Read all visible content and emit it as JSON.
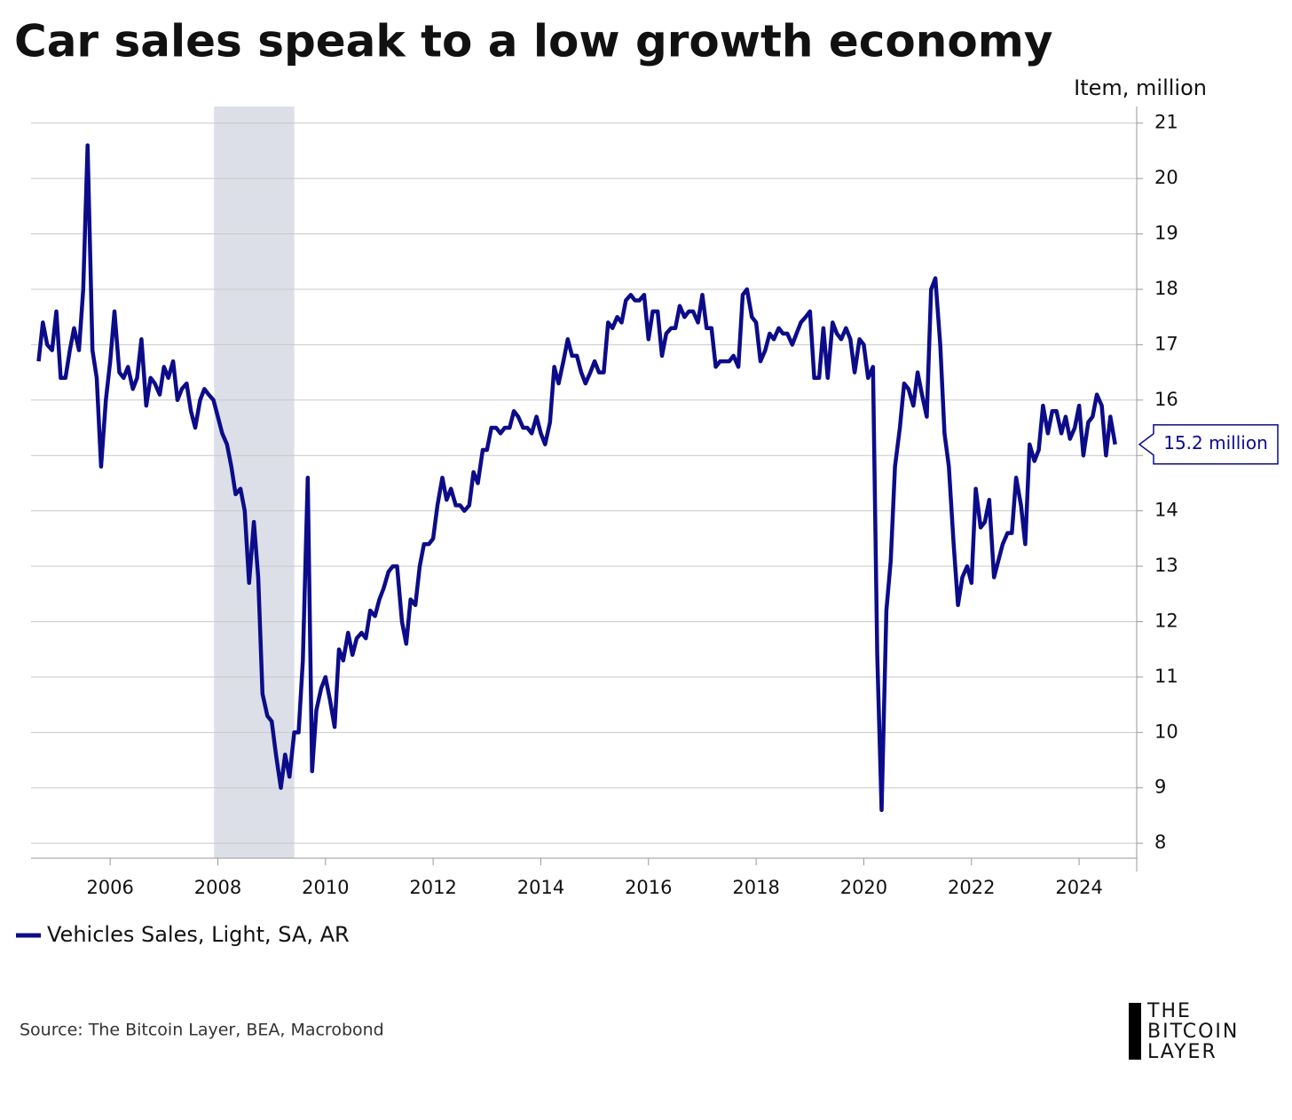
{
  "chart_data": {
    "type": "line",
    "title": "Car sales speak to a low growth economy",
    "y_axis_label": "Item, million",
    "source": "Source: The Bitcoin Layer, BEA, Macrobond",
    "logo": [
      "THE",
      "BITCOIN",
      "LAYER"
    ],
    "annotation": "15.2 million",
    "recession": [
      2007.93,
      2009.42
    ],
    "xlim": [
      2004.53,
      2025.07
    ],
    "xticks": [
      2006,
      2008,
      2010,
      2012,
      2014,
      2016,
      2018,
      2020,
      2022,
      2024
    ],
    "ylim": [
      7.73,
      21.3
    ],
    "yticks": [
      8,
      9,
      10,
      11,
      12,
      13,
      14,
      15,
      16,
      17,
      18,
      19,
      20,
      21
    ],
    "grid": true,
    "x": [
      2004.67,
      2004.75,
      2004.83,
      2004.92,
      2005.0,
      2005.08,
      2005.17,
      2005.25,
      2005.33,
      2005.42,
      2005.5,
      2005.58,
      2005.67,
      2005.75,
      2005.83,
      2005.92,
      2006.0,
      2006.08,
      2006.17,
      2006.25,
      2006.33,
      2006.42,
      2006.5,
      2006.58,
      2006.67,
      2006.75,
      2006.83,
      2006.92,
      2007.0,
      2007.08,
      2007.17,
      2007.25,
      2007.33,
      2007.42,
      2007.5,
      2007.58,
      2007.67,
      2007.75,
      2007.83,
      2007.92,
      2008.0,
      2008.08,
      2008.17,
      2008.25,
      2008.33,
      2008.42,
      2008.5,
      2008.58,
      2008.67,
      2008.75,
      2008.83,
      2008.92,
      2009.0,
      2009.08,
      2009.17,
      2009.25,
      2009.33,
      2009.42,
      2009.5,
      2009.58,
      2009.67,
      2009.75,
      2009.83,
      2009.92,
      2010.0,
      2010.08,
      2010.17,
      2010.25,
      2010.33,
      2010.42,
      2010.5,
      2010.58,
      2010.67,
      2010.75,
      2010.83,
      2010.92,
      2011.0,
      2011.08,
      2011.17,
      2011.25,
      2011.33,
      2011.42,
      2011.5,
      2011.58,
      2011.67,
      2011.75,
      2011.83,
      2011.92,
      2012.0,
      2012.08,
      2012.17,
      2012.25,
      2012.33,
      2012.42,
      2012.5,
      2012.58,
      2012.67,
      2012.75,
      2012.83,
      2012.92,
      2013.0,
      2013.08,
      2013.17,
      2013.25,
      2013.33,
      2013.42,
      2013.5,
      2013.58,
      2013.67,
      2013.75,
      2013.83,
      2013.92,
      2014.0,
      2014.08,
      2014.17,
      2014.25,
      2014.33,
      2014.42,
      2014.5,
      2014.58,
      2014.67,
      2014.75,
      2014.83,
      2014.92,
      2015.0,
      2015.08,
      2015.17,
      2015.25,
      2015.33,
      2015.42,
      2015.5,
      2015.58,
      2015.67,
      2015.75,
      2015.83,
      2015.92,
      2016.0,
      2016.08,
      2016.17,
      2016.25,
      2016.33,
      2016.42,
      2016.5,
      2016.58,
      2016.67,
      2016.75,
      2016.83,
      2016.92,
      2017.0,
      2017.08,
      2017.17,
      2017.25,
      2017.33,
      2017.42,
      2017.5,
      2017.58,
      2017.67,
      2017.75,
      2017.83,
      2017.92,
      2018.0,
      2018.08,
      2018.17,
      2018.25,
      2018.33,
      2018.42,
      2018.5,
      2018.58,
      2018.67,
      2018.75,
      2018.83,
      2018.92,
      2019.0,
      2019.08,
      2019.17,
      2019.25,
      2019.33,
      2019.42,
      2019.5,
      2019.58,
      2019.67,
      2019.75,
      2019.83,
      2019.92,
      2020.0,
      2020.08,
      2020.17,
      2020.25,
      2020.33,
      2020.42,
      2020.5,
      2020.58,
      2020.67,
      2020.75,
      2020.83,
      2020.92,
      2021.0,
      2021.08,
      2021.17,
      2021.25,
      2021.33,
      2021.42,
      2021.5,
      2021.58,
      2021.67,
      2021.75,
      2021.83,
      2021.92,
      2022.0,
      2022.08,
      2022.17,
      2022.25,
      2022.33,
      2022.42,
      2022.5,
      2022.58,
      2022.67,
      2022.75,
      2022.83,
      2022.92,
      2023.0,
      2023.08,
      2023.17,
      2023.25,
      2023.33,
      2023.42,
      2023.5,
      2023.58,
      2023.67,
      2023.75,
      2023.83,
      2023.92,
      2024.0,
      2024.08,
      2024.17,
      2024.25,
      2024.33,
      2024.42,
      2024.5,
      2024.58,
      2024.67
    ],
    "series": [
      {
        "name": "Vehicles Sales, Light, SA, AR",
        "color": "#0c0c8a",
        "values": [
          16.7,
          17.4,
          17.0,
          16.9,
          17.6,
          16.4,
          16.4,
          16.9,
          17.3,
          16.9,
          18.0,
          20.6,
          16.9,
          16.4,
          14.8,
          16.0,
          16.7,
          17.6,
          16.5,
          16.4,
          16.6,
          16.2,
          16.4,
          17.1,
          15.9,
          16.4,
          16.3,
          16.1,
          16.6,
          16.4,
          16.7,
          16.0,
          16.2,
          16.3,
          15.8,
          15.5,
          16.0,
          16.2,
          16.1,
          16.0,
          15.7,
          15.4,
          15.2,
          14.8,
          14.3,
          14.4,
          14.0,
          12.7,
          13.8,
          12.8,
          10.7,
          10.3,
          10.2,
          9.6,
          9.0,
          9.6,
          9.2,
          10.0,
          10.0,
          11.3,
          14.6,
          9.3,
          10.4,
          10.8,
          11.0,
          10.6,
          10.1,
          11.5,
          11.3,
          11.8,
          11.4,
          11.7,
          11.8,
          11.7,
          12.2,
          12.1,
          12.4,
          12.6,
          12.9,
          13.0,
          13.0,
          12.0,
          11.6,
          12.4,
          12.3,
          13.0,
          13.4,
          13.4,
          13.5,
          14.1,
          14.6,
          14.2,
          14.4,
          14.1,
          14.1,
          14.0,
          14.1,
          14.7,
          14.5,
          15.1,
          15.1,
          15.5,
          15.5,
          15.4,
          15.5,
          15.5,
          15.8,
          15.7,
          15.5,
          15.5,
          15.4,
          15.7,
          15.4,
          15.2,
          15.6,
          16.6,
          16.3,
          16.7,
          17.1,
          16.8,
          16.8,
          16.5,
          16.3,
          16.5,
          16.7,
          16.5,
          16.5,
          17.4,
          17.3,
          17.5,
          17.4,
          17.8,
          17.9,
          17.8,
          17.8,
          17.9,
          17.1,
          17.6,
          17.6,
          16.8,
          17.2,
          17.3,
          17.3,
          17.7,
          17.5,
          17.6,
          17.6,
          17.4,
          17.9,
          17.3,
          17.3,
          16.6,
          16.7,
          16.7,
          16.7,
          16.8,
          16.6,
          17.9,
          18.0,
          17.5,
          17.4,
          16.7,
          16.9,
          17.2,
          17.1,
          17.3,
          17.2,
          17.2,
          17.0,
          17.2,
          17.4,
          17.5,
          17.6,
          16.4,
          16.4,
          17.3,
          16.4,
          17.4,
          17.2,
          17.1,
          17.3,
          17.1,
          16.5,
          17.1,
          17.0,
          16.4,
          16.6,
          11.4,
          8.6,
          12.2,
          13.1,
          14.8,
          15.5,
          16.3,
          16.2,
          15.9,
          16.5,
          16.1,
          15.7,
          18.0,
          18.2,
          17.0,
          15.4,
          14.8,
          13.4,
          12.3,
          12.8,
          13.0,
          12.7,
          14.4,
          13.7,
          13.8,
          14.2,
          12.8,
          13.1,
          13.4,
          13.6,
          13.6,
          14.6,
          14.1,
          13.4,
          15.2,
          14.9,
          15.1,
          15.9,
          15.4,
          15.8,
          15.8,
          15.4,
          15.7,
          15.3,
          15.5,
          15.9,
          15.0,
          15.6,
          15.7,
          16.1,
          15.9,
          15.0,
          15.7,
          15.2
        ]
      }
    ]
  }
}
